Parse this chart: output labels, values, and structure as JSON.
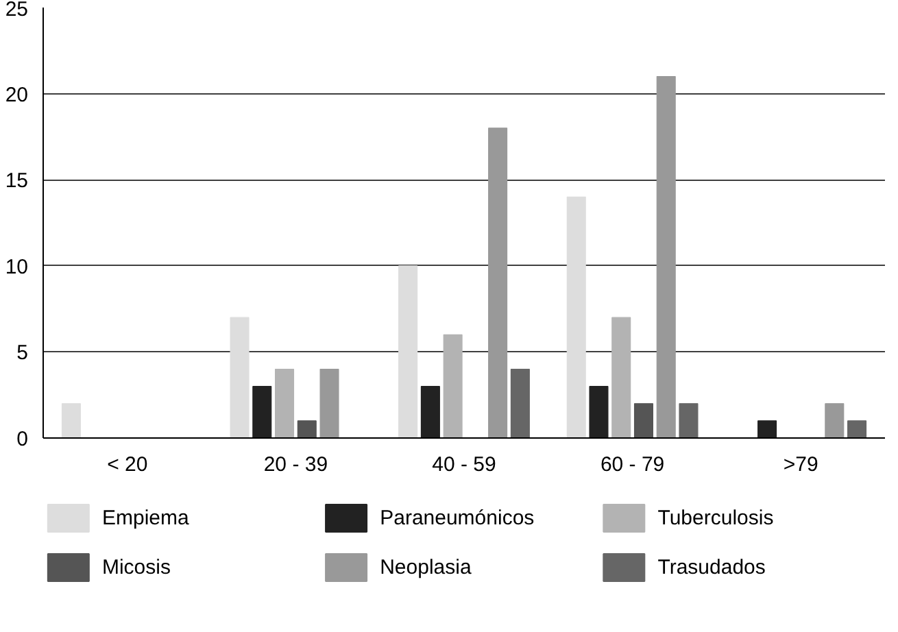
{
  "chart_data": {
    "type": "bar",
    "categories": [
      "< 20",
      "20 - 39",
      "40 - 59",
      "60 - 79",
      ">79"
    ],
    "series": [
      {
        "name": "Empiema",
        "color": "#dddddd",
        "values": [
          2,
          7,
          10,
          14,
          0
        ]
      },
      {
        "name": "Paraneumónicos",
        "color": "#222222",
        "values": [
          0,
          3,
          3,
          3,
          1
        ]
      },
      {
        "name": "Tuberculosis",
        "color": "#b3b3b3",
        "values": [
          0,
          4,
          6,
          7,
          0
        ]
      },
      {
        "name": "Micosis",
        "color": "#555555",
        "values": [
          0,
          1,
          0,
          2,
          0
        ]
      },
      {
        "name": "Neoplasia",
        "color": "#999999",
        "values": [
          0,
          4,
          18,
          21,
          2
        ]
      },
      {
        "name": "Trasudados",
        "color": "#666666",
        "values": [
          0,
          0,
          4,
          2,
          1
        ]
      }
    ],
    "ylim": [
      0,
      25
    ],
    "yticks": [
      0,
      5,
      10,
      15,
      20,
      25
    ],
    "grid": "y",
    "legend": "bottom"
  }
}
